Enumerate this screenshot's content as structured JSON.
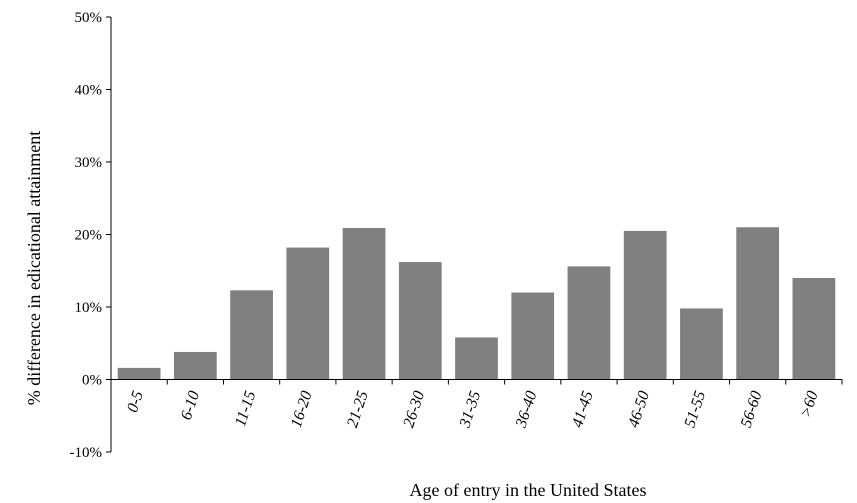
{
  "chart_data": {
    "type": "bar",
    "title": "",
    "xlabel": "Age of entry in the United States",
    "ylabel": "% difference in edicational attainment",
    "categories": [
      "0-5",
      "6-10",
      "11-15",
      "16-20",
      "21-25",
      "26-30",
      "31-35",
      "36-40",
      "41-45",
      "46-50",
      "51-55",
      "56-60",
      ">60"
    ],
    "values": [
      0.016,
      0.038,
      0.123,
      0.182,
      0.209,
      0.162,
      0.058,
      0.12,
      0.156,
      0.205,
      0.098,
      0.21,
      0.14
    ],
    "ylim": [
      -0.1,
      0.5
    ],
    "yticks": [
      -0.1,
      0.0,
      0.1,
      0.2,
      0.3,
      0.4,
      0.5
    ],
    "ytick_labels": [
      "-10%",
      "0%",
      "10%",
      "20%",
      "30%",
      "40%",
      "50%"
    ],
    "bar_color": "#808080",
    "grid": false,
    "legend": "none"
  }
}
